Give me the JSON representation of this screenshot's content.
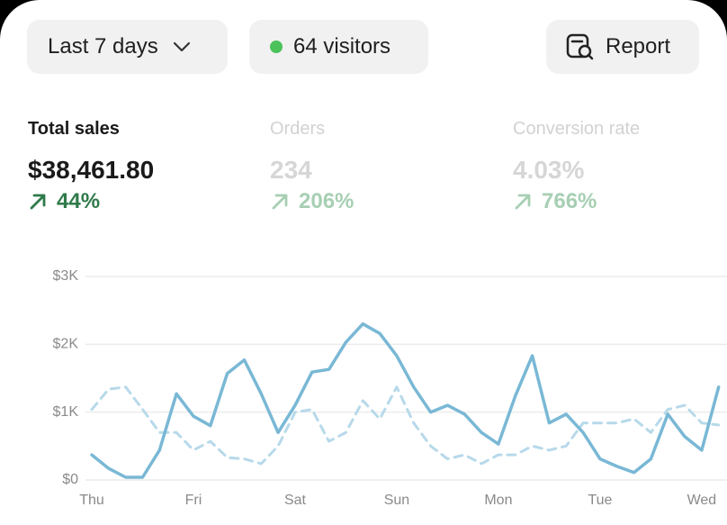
{
  "buttons": {
    "range": "Last 7 days",
    "visitors": "64 visitors",
    "report": "Report"
  },
  "metrics": [
    {
      "label": "Total sales",
      "value": "$38,461.80",
      "change": "44%"
    },
    {
      "label": "Orders",
      "value": "234",
      "change": "206%"
    },
    {
      "label": "Conversion rate",
      "value": "4.03%",
      "change": "766%"
    }
  ],
  "chart_data": {
    "type": "line",
    "categories": [
      "Thu",
      null,
      null,
      null,
      null,
      null,
      "Fri",
      null,
      null,
      null,
      null,
      null,
      "Sat",
      null,
      null,
      null,
      null,
      null,
      "Sun",
      null,
      null,
      null,
      null,
      null,
      "Mon",
      null,
      null,
      null,
      null,
      null,
      "Tue",
      null,
      null,
      null,
      null,
      null,
      "Wed",
      null
    ],
    "series": [
      {
        "color": "#79b8d5",
        "dash": false,
        "values": [
          370,
          170,
          40,
          40,
          440,
          1270,
          940,
          800,
          1570,
          1770,
          1270,
          700,
          1100,
          1590,
          1630,
          2030,
          2300,
          2160,
          1830,
          1370,
          1000,
          1100,
          970,
          700,
          530,
          1240,
          1830,
          840,
          970,
          700,
          310,
          200,
          110,
          310,
          970,
          640,
          440,
          1370
        ]
      },
      {
        "color": "#b7d9ea",
        "dash": true,
        "values": [
          1040,
          1340,
          1370,
          1040,
          700,
          700,
          440,
          570,
          330,
          310,
          240,
          500,
          1000,
          1040,
          570,
          700,
          1170,
          900,
          1370,
          840,
          500,
          310,
          370,
          240,
          370,
          370,
          500,
          440,
          500,
          840,
          840,
          840,
          900,
          700,
          1040,
          1100,
          840,
          810
        ]
      }
    ],
    "ylim": [
      0,
      3000
    ],
    "yticks": [
      {
        "value": 0,
        "label": "$0"
      },
      {
        "value": 1000,
        "label": "$1K"
      },
      {
        "value": 2000,
        "label": "$2K"
      },
      {
        "value": 3000,
        "label": "$3K"
      }
    ],
    "grid": true
  }
}
